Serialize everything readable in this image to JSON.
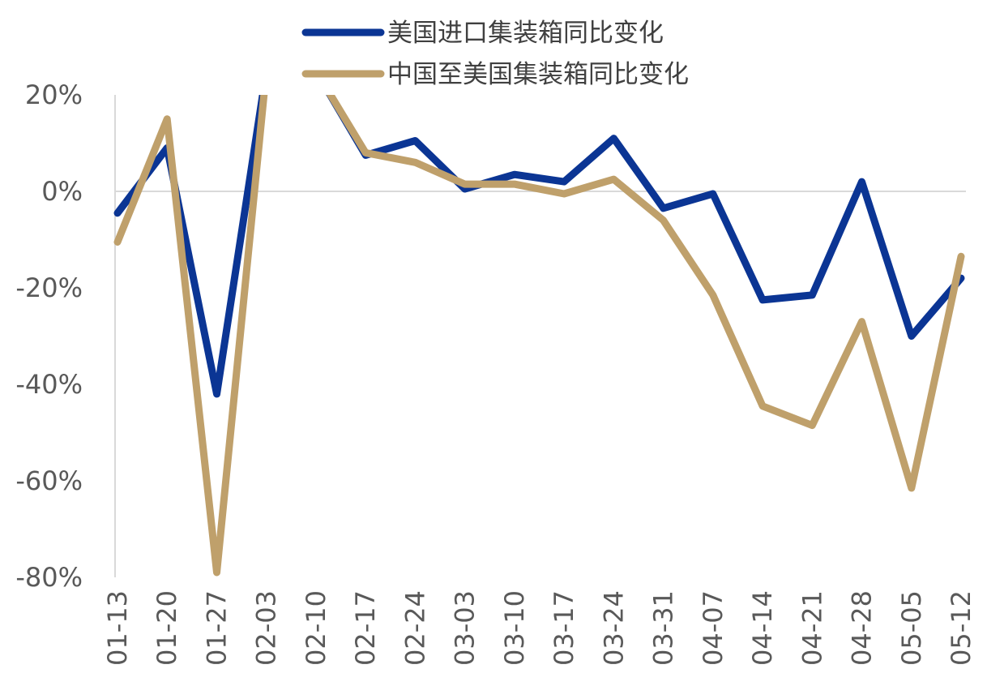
{
  "chart_data": {
    "type": "line",
    "categories": [
      "01-13",
      "01-20",
      "01-27",
      "02-03",
      "02-10",
      "02-17",
      "02-24",
      "03-03",
      "03-10",
      "03-17",
      "03-24",
      "03-31",
      "04-07",
      "04-14",
      "04-21",
      "04-28",
      "05-05",
      "05-12"
    ],
    "ylim": [
      -80,
      20
    ],
    "yticks": [
      20,
      0,
      -20,
      -40,
      -60,
      -80
    ],
    "ytick_labels": [
      "20%",
      "0%",
      "-20%",
      "-40%",
      "-60%",
      "-80%"
    ],
    "grid": false,
    "zero_line": true,
    "legend_position": "top-center",
    "series": [
      {
        "name": "美国进口集装箱同比变化",
        "color": "#0B3594",
        "values": [
          -4.5,
          9,
          -42,
          25,
          25,
          7.5,
          10.5,
          0.5,
          3.5,
          2,
          11,
          -3.5,
          -0.5,
          -22.5,
          -21.5,
          2,
          -30,
          -18
        ]
      },
      {
        "name": "中国至美国集装箱同比变化",
        "color": "#BFA06B",
        "values": [
          -10.5,
          15,
          -79,
          25,
          25,
          8,
          6,
          1.5,
          1.5,
          -0.5,
          2.5,
          -6,
          -21.5,
          -44.5,
          -48.5,
          -27,
          -61.5,
          -13.5
        ]
      }
    ]
  }
}
